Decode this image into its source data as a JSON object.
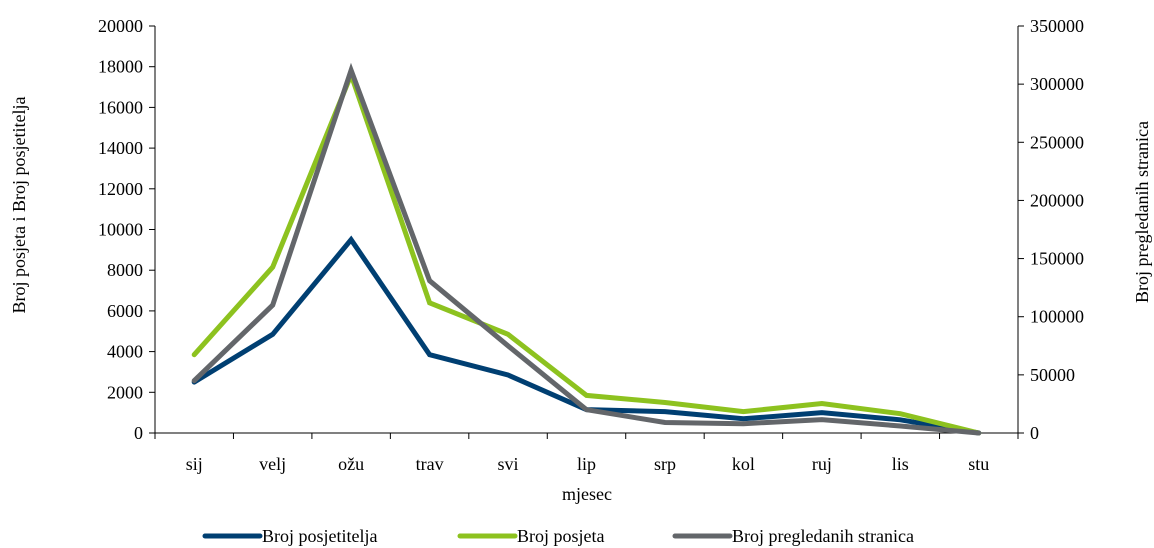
{
  "chart_data": {
    "type": "line",
    "xlabel": "mjesec",
    "ylabel_left": "Broj posjeta i Broj  posjetitelja",
    "ylabel_right": "Broj pregledanih stranica",
    "categories": [
      "sij",
      "velj",
      "ožu",
      "trav",
      "svi",
      "lip",
      "srp",
      "kol",
      "ruj",
      "lis",
      "stu"
    ],
    "y_left": {
      "min": 0,
      "max": 20000,
      "step": 2000,
      "ticks": [
        "0",
        "2000",
        "4000",
        "6000",
        "8000",
        "10000",
        "12000",
        "14000",
        "16000",
        "18000",
        "20000"
      ]
    },
    "y_right": {
      "min": 0,
      "max": 350000,
      "step": 50000,
      "ticks": [
        "0",
        "50000",
        "100000",
        "150000",
        "200000",
        "250000",
        "300000",
        "350000"
      ]
    },
    "grid": false,
    "legend_position": "bottom",
    "series": [
      {
        "name": "Broj posjetitelja",
        "axis": "left",
        "color": "#003f72",
        "values": [
          2500,
          4850,
          9500,
          3850,
          2850,
          1150,
          1050,
          700,
          1000,
          650,
          0
        ]
      },
      {
        "name": "Broj posjeta",
        "axis": "left",
        "color": "#8dc21f",
        "values": [
          3850,
          8150,
          17600,
          6400,
          4850,
          1850,
          1500,
          1050,
          1450,
          950,
          0
        ]
      },
      {
        "name": "Broj pregledanih stranica",
        "axis": "right",
        "color": "#63666a",
        "values": [
          45000,
          110000,
          312000,
          131000,
          75000,
          20000,
          9000,
          8000,
          11500,
          6000,
          0
        ]
      }
    ]
  }
}
